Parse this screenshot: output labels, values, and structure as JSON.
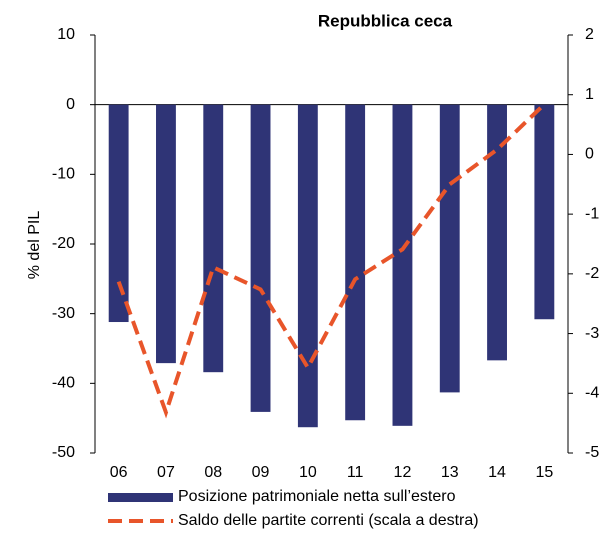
{
  "chart_data": {
    "type": "bar",
    "title": "Repubblica ceca",
    "y_label": "% del PIL",
    "categories": [
      "06",
      "07",
      "08",
      "09",
      "10",
      "11",
      "12",
      "13",
      "14",
      "15"
    ],
    "series": [
      {
        "name": "Posizione patrimoniale netta sull’estero",
        "type": "bar",
        "color": "#2f3476",
        "axis": "y",
        "values": [
          -31.2,
          -37.1,
          -38.4,
          -44.1,
          -46.3,
          -45.3,
          -46.1,
          -41.3,
          -36.7,
          -30.8
        ]
      },
      {
        "name": "Saldo delle partite correnti (scala a destra)",
        "type": "line",
        "color": "#e8552a",
        "axis": "y2",
        "values": [
          -2.13,
          -4.32,
          -1.89,
          -2.26,
          -3.57,
          -2.09,
          -1.59,
          -0.5,
          0.08,
          0.84
        ]
      }
    ],
    "ylim": [
      -50,
      10
    ],
    "yticks": [
      -50,
      -40,
      -30,
      -20,
      -10,
      0,
      10
    ],
    "y2lim": [
      -5,
      2
    ],
    "y2ticks": [
      -5,
      -4,
      -3,
      -2,
      -1,
      0,
      1,
      2
    ],
    "grid": false
  }
}
